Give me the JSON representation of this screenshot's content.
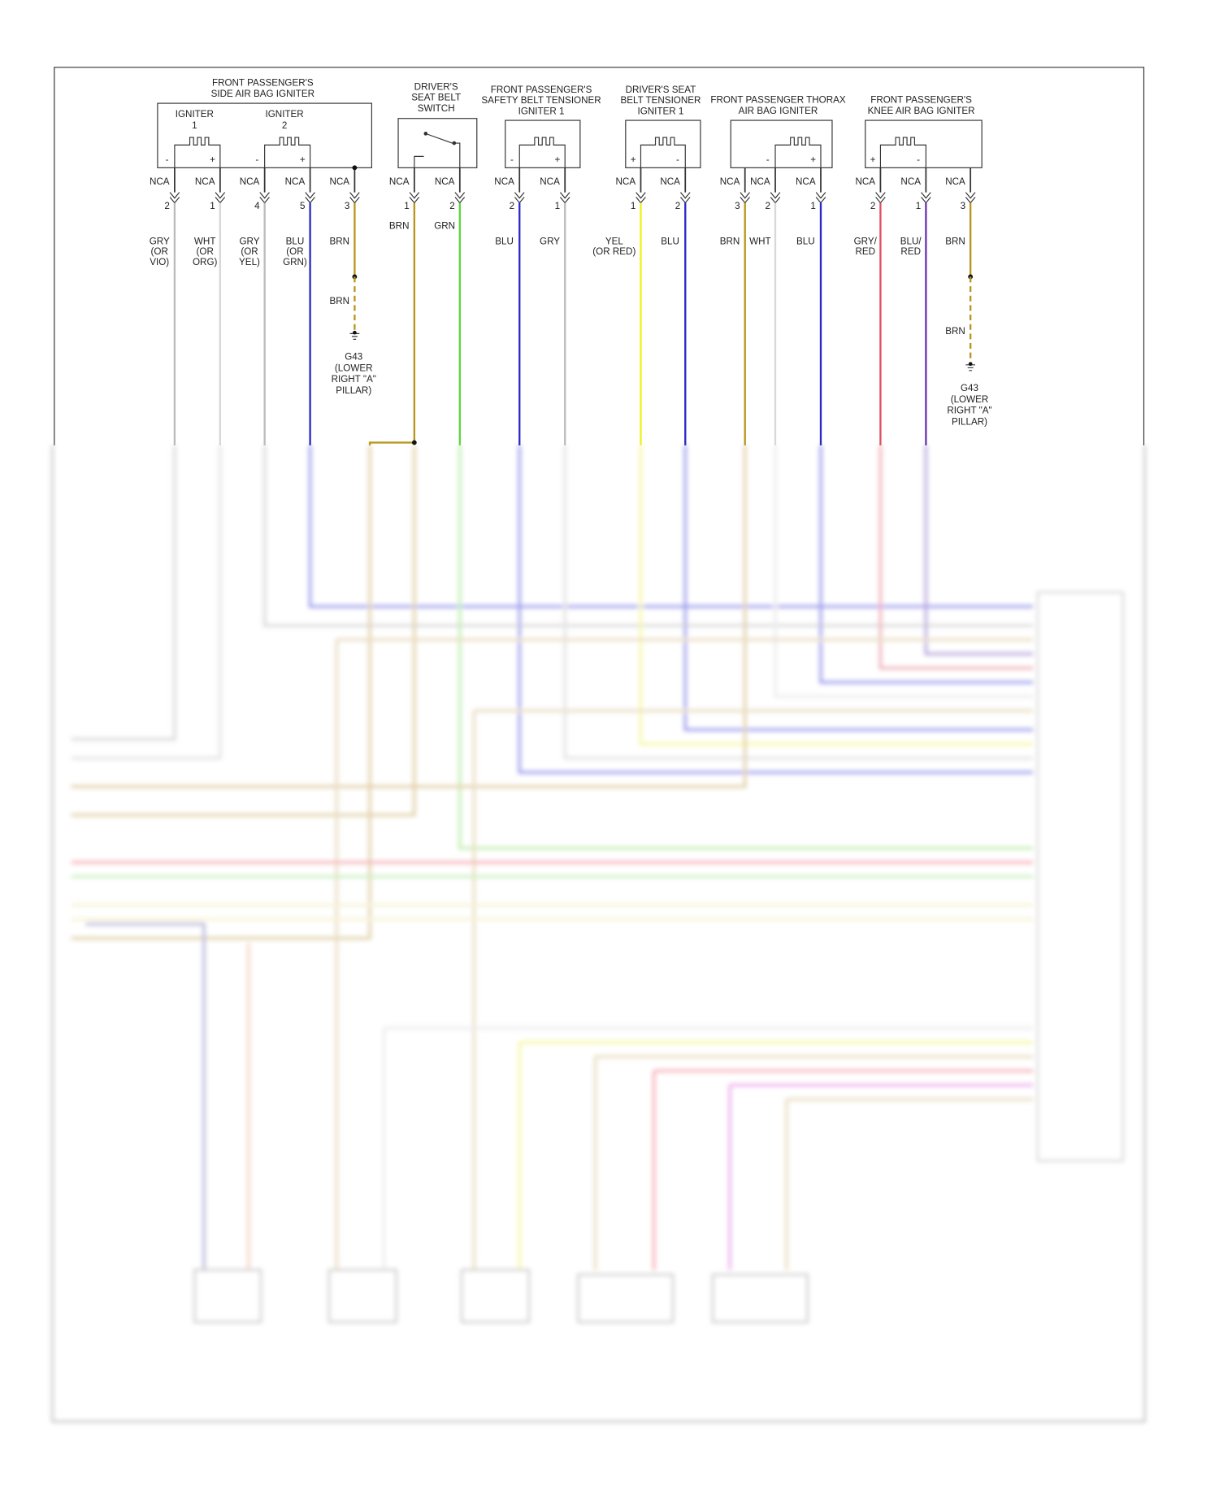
{
  "components": [
    {
      "title": [
        "FRONT PASSENGER'S",
        "SIDE AIR BAG IGNITER"
      ],
      "sublabels": [
        [
          "IGNITER",
          "1"
        ],
        [
          "IGNITER",
          "2"
        ]
      ],
      "pins": [
        {
          "polarity": "-",
          "connector": "NCA",
          "number": "2",
          "wire": [
            "GRY",
            "(OR",
            "VIO)"
          ]
        },
        {
          "polarity": "+",
          "connector": "NCA",
          "number": "1",
          "wire": [
            "WHT",
            "(OR",
            "ORG)"
          ]
        },
        {
          "polarity": "-",
          "connector": "NCA",
          "number": "4",
          "wire": [
            "GRY",
            "(OR",
            "YEL)"
          ]
        },
        {
          "polarity": "+",
          "connector": "NCA",
          "number": "5",
          "wire": [
            "BLU",
            "(OR",
            "GRN)"
          ]
        },
        {
          "connector": "NCA",
          "number": "3",
          "wire": [
            "BRN"
          ]
        }
      ],
      "ground": {
        "wire": "BRN",
        "label": [
          "G43",
          "(LOWER",
          "RIGHT \"A\"",
          "PILLAR)"
        ]
      }
    },
    {
      "title": [
        "DRIVER'S",
        "SEAT BELT",
        "SWITCH"
      ],
      "pins": [
        {
          "connector": "NCA",
          "number": "1",
          "wire": [
            "BRN"
          ]
        },
        {
          "connector": "NCA",
          "number": "2",
          "wire": [
            "GRN"
          ]
        }
      ]
    },
    {
      "title": [
        "FRONT PASSENGER'S",
        "SAFETY BELT TENSIONER",
        "IGNITER 1"
      ],
      "pins": [
        {
          "polarity": "-",
          "connector": "NCA",
          "number": "2",
          "wire": [
            "BLU"
          ]
        },
        {
          "polarity": "+",
          "connector": "NCA",
          "number": "1",
          "wire": [
            "GRY"
          ]
        }
      ]
    },
    {
      "title": [
        "DRIVER'S SEAT",
        "BELT TENSIONER",
        "IGNITER 1"
      ],
      "pins": [
        {
          "polarity": "+",
          "connector": "NCA",
          "number": "1",
          "wire": [
            "YEL",
            "(OR RED)"
          ]
        },
        {
          "polarity": "-",
          "connector": "NCA",
          "number": "2",
          "wire": [
            "BLU"
          ]
        }
      ]
    },
    {
      "title": [
        "FRONT PASSENGER THORAX",
        "AIR BAG IGNITER"
      ],
      "pins": [
        {
          "connector": "NCA",
          "number": "3",
          "wire": [
            "BRN"
          ]
        },
        {
          "polarity": "-",
          "connector": "NCA",
          "number": "2",
          "wire": [
            "WHT"
          ]
        },
        {
          "polarity": "+",
          "connector": "NCA",
          "number": "1",
          "wire": [
            "BLU"
          ]
        }
      ]
    },
    {
      "title": [
        "FRONT PASSENGER'S",
        "KNEE AIR BAG IGNITER"
      ],
      "pins": [
        {
          "polarity": "+",
          "connector": "NCA",
          "number": "2",
          "wire": [
            "GRY/",
            "RED"
          ]
        },
        {
          "polarity": "-",
          "connector": "NCA",
          "number": "1",
          "wire": [
            "BLU/",
            "RED"
          ]
        },
        {
          "connector": "NCA",
          "number": "3",
          "wire": [
            "BRN"
          ]
        }
      ],
      "ground": {
        "wire": "BRN",
        "label": [
          "G43",
          "(LOWER",
          "RIGHT \"A\"",
          "PILLAR)"
        ]
      }
    }
  ]
}
